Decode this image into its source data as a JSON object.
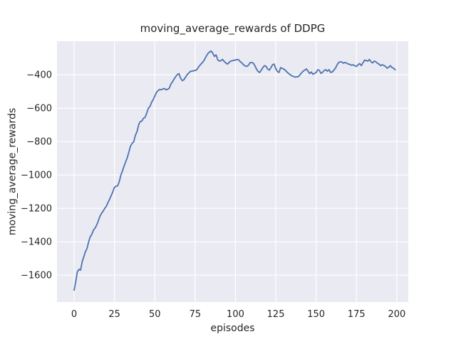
{
  "colors": {
    "figure_background": "#ffffff",
    "axes_background": "#eaeaf2",
    "grid": "#ffffff",
    "line": "#4c72b0",
    "text": "#262626"
  },
  "chart_data": {
    "type": "line",
    "title": "moving_average_rewards of DDPG",
    "xlabel": "episodes",
    "ylabel": "moving_average_rewards",
    "grid": true,
    "legend": false,
    "xticks": [
      0,
      25,
      50,
      75,
      100,
      125,
      150,
      175,
      200
    ],
    "yticks": [
      -400,
      -600,
      -800,
      -1000,
      -1200,
      -1400,
      -1600
    ],
    "xlim": [
      -10.6,
      207.1
    ],
    "ylim": [
      -1761,
      -199
    ],
    "x_first": 0,
    "x_step": 1,
    "series": [
      {
        "name": "moving_average_rewards",
        "values": [
          -1690,
          -1640,
          -1580,
          -1565,
          -1570,
          -1520,
          -1490,
          -1460,
          -1440,
          -1400,
          -1370,
          -1355,
          -1330,
          -1318,
          -1300,
          -1275,
          -1248,
          -1230,
          -1216,
          -1200,
          -1187,
          -1165,
          -1145,
          -1123,
          -1100,
          -1074,
          -1067,
          -1065,
          -1040,
          -1000,
          -975,
          -946,
          -920,
          -895,
          -860,
          -826,
          -810,
          -800,
          -762,
          -740,
          -700,
          -680,
          -677,
          -660,
          -655,
          -630,
          -600,
          -591,
          -565,
          -549,
          -528,
          -506,
          -495,
          -488,
          -490,
          -485,
          -482,
          -490,
          -487,
          -480,
          -455,
          -442,
          -425,
          -410,
          -398,
          -393,
          -420,
          -435,
          -430,
          -415,
          -400,
          -390,
          -380,
          -378,
          -376,
          -374,
          -370,
          -355,
          -343,
          -332,
          -322,
          -305,
          -287,
          -272,
          -263,
          -258,
          -272,
          -290,
          -281,
          -310,
          -318,
          -315,
          -308,
          -320,
          -329,
          -336,
          -327,
          -318,
          -316,
          -313,
          -312,
          -308,
          -310,
          -322,
          -329,
          -340,
          -347,
          -350,
          -343,
          -328,
          -326,
          -330,
          -345,
          -365,
          -380,
          -386,
          -372,
          -357,
          -345,
          -350,
          -366,
          -372,
          -357,
          -340,
          -336,
          -364,
          -380,
          -386,
          -357,
          -362,
          -366,
          -374,
          -384,
          -393,
          -400,
          -406,
          -410,
          -414,
          -412,
          -411,
          -400,
          -388,
          -378,
          -372,
          -365,
          -379,
          -393,
          -383,
          -397,
          -392,
          -386,
          -370,
          -373,
          -392,
          -385,
          -374,
          -369,
          -379,
          -369,
          -386,
          -383,
          -372,
          -360,
          -340,
          -326,
          -322,
          -324,
          -331,
          -326,
          -331,
          -336,
          -338,
          -343,
          -340,
          -346,
          -350,
          -340,
          -333,
          -345,
          -329,
          -312,
          -315,
          -318,
          -308,
          -322,
          -329,
          -318,
          -322,
          -331,
          -336,
          -345,
          -340,
          -344,
          -350,
          -360,
          -355,
          -345,
          -357,
          -360,
          -370
        ]
      }
    ]
  }
}
